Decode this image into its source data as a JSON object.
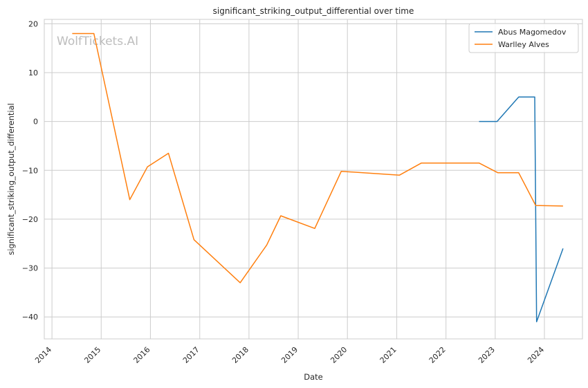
{
  "chart_data": {
    "type": "line",
    "title": "significant_striking_output_differential over time",
    "xlabel": "Date",
    "ylabel": "significant_striking_output_differential",
    "watermark": "WolfTickets.AI",
    "x_ticks": [
      "2014",
      "2015",
      "2016",
      "2017",
      "2018",
      "2019",
      "2020",
      "2021",
      "2022",
      "2023",
      "2024"
    ],
    "y_ticks": [
      20,
      10,
      0,
      -10,
      -20,
      -30,
      -40
    ],
    "xlim": [
      "2013-11-05",
      "2024-10-09"
    ],
    "ylim": [
      -44.5,
      20.9
    ],
    "grid": true,
    "legend_position": "top-right",
    "series": [
      {
        "name": "Abus Magomedov",
        "color": "#1f77b4",
        "points": [
          [
            "2022-09-03",
            0
          ],
          [
            "2023-01-15",
            0
          ],
          [
            "2023-06-24",
            5
          ],
          [
            "2023-10-21",
            5
          ],
          [
            "2023-11-04",
            -41
          ],
          [
            "2024-05-18",
            -26
          ]
        ]
      },
      {
        "name": "Warlley Alves",
        "color": "#ff7f0e",
        "points": [
          [
            "2014-05-31",
            18
          ],
          [
            "2014-11-08",
            18
          ],
          [
            "2015-08-01",
            -16
          ],
          [
            "2015-12-10",
            -9.3
          ],
          [
            "2016-05-14",
            -6.5
          ],
          [
            "2016-11-19",
            -24.2
          ],
          [
            "2017-10-28",
            -33
          ],
          [
            "2018-05-12",
            -25.3
          ],
          [
            "2018-08-25",
            -19.3
          ],
          [
            "2019-05-04",
            -21.9
          ],
          [
            "2019-11-16",
            -10.2
          ],
          [
            "2021-01-20",
            -11
          ],
          [
            "2021-07-03",
            -8.5
          ],
          [
            "2022-09-03",
            -8.5
          ],
          [
            "2023-01-21",
            -10.5
          ],
          [
            "2023-06-24",
            -10.5
          ],
          [
            "2023-10-28",
            -17.2
          ],
          [
            "2024-05-18",
            -17.3
          ]
        ]
      }
    ]
  }
}
